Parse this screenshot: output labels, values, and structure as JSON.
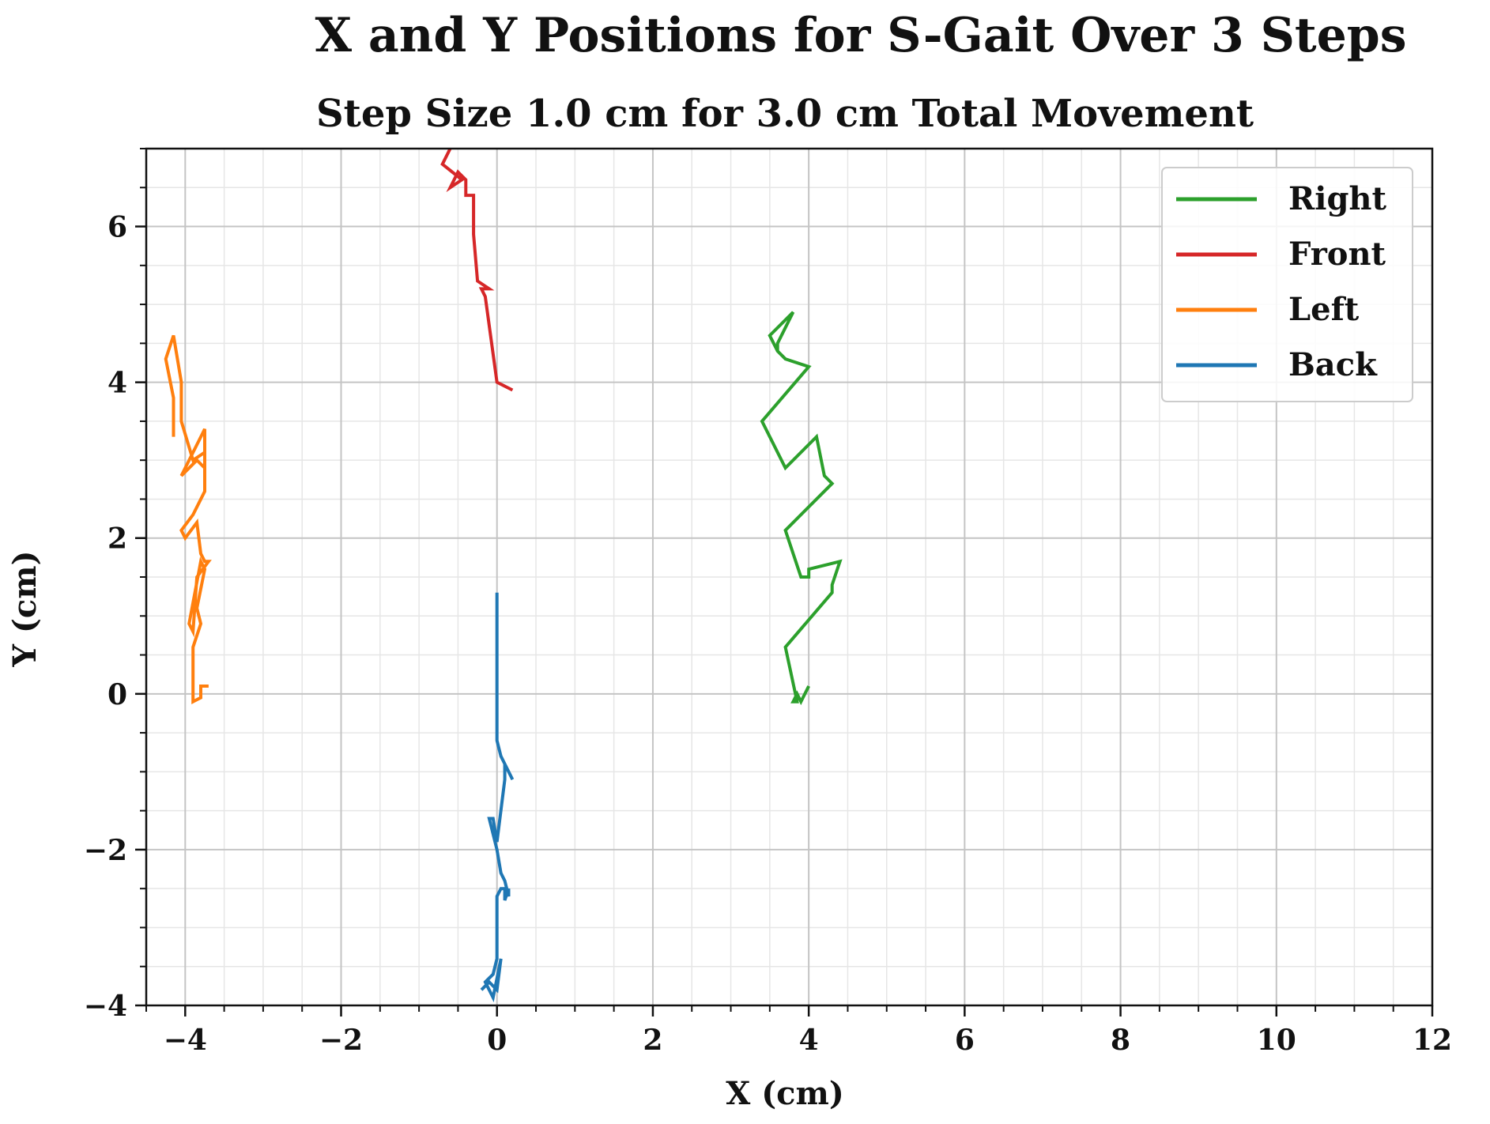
{
  "chart_data": {
    "type": "line",
    "title": "X and Y Positions for S-Gait Over 3 Steps",
    "subtitle": "Step Size 1.0 cm for 3.0 cm Total Movement",
    "xlabel": "X (cm)",
    "ylabel": "Y (cm)",
    "xlim": [
      -4.5,
      12
    ],
    "ylim": [
      -4,
      7
    ],
    "xticks": [
      -4,
      -2,
      0,
      2,
      4,
      6,
      8,
      10,
      12
    ],
    "yticks": [
      -4,
      -2,
      0,
      2,
      4,
      6
    ],
    "xtick_labels": [
      "−4",
      "−2",
      "0",
      "2",
      "4",
      "6",
      "8",
      "10",
      "12"
    ],
    "ytick_labels": [
      "−4",
      "−2",
      "0",
      "2",
      "4",
      "6"
    ],
    "grid": true,
    "minor_grid": true,
    "legend_position": "top-right",
    "series": [
      {
        "name": "Right",
        "color": "#2ca02c",
        "x": [
          4.0,
          3.9,
          3.85,
          3.8,
          3.85,
          3.7,
          4.3,
          4.3,
          4.4,
          4.0,
          4.0,
          3.9,
          3.7,
          4.3,
          4.2,
          4.1,
          3.7,
          3.4,
          4.0,
          3.7,
          3.6,
          3.5,
          3.8,
          3.6,
          3.6
        ],
        "y": [
          0.1,
          -0.1,
          0.0,
          -0.1,
          -0.1,
          0.6,
          1.3,
          1.4,
          1.7,
          1.6,
          1.5,
          1.5,
          2.1,
          2.7,
          2.8,
          3.3,
          2.9,
          3.5,
          4.2,
          4.3,
          4.4,
          4.6,
          4.9,
          4.5,
          4.4
        ]
      },
      {
        "name": "Front",
        "color": "#d62728",
        "x": [
          0.2,
          0.0,
          -0.15,
          -0.2,
          -0.1,
          -0.25,
          -0.3,
          -0.3,
          -0.4,
          -0.4,
          -0.5,
          -0.6,
          -0.45,
          -0.7,
          -0.55
        ],
        "y": [
          3.9,
          4.0,
          5.1,
          5.2,
          5.2,
          5.3,
          5.9,
          6.4,
          6.4,
          6.6,
          6.7,
          6.5,
          6.6,
          6.8,
          7.1
        ]
      },
      {
        "name": "Left",
        "color": "#ff7f0e",
        "x": [
          -3.7,
          -3.8,
          -3.8,
          -3.9,
          -3.9,
          -3.8,
          -3.85,
          -3.75,
          -3.8,
          -3.95,
          -3.9,
          -3.85,
          -3.7,
          -3.75,
          -3.8,
          -3.85,
          -4.0,
          -4.05,
          -3.9,
          -3.75,
          -3.75,
          -4.05,
          -3.85,
          -3.75,
          -3.75,
          -3.9,
          -4.05,
          -4.05,
          -4.15,
          -4.25,
          -4.15,
          -4.15
        ],
        "y": [
          0.1,
          0.1,
          -0.05,
          -0.1,
          0.6,
          0.9,
          1.1,
          1.6,
          1.7,
          0.9,
          0.8,
          1.5,
          1.7,
          1.7,
          1.8,
          2.2,
          2.0,
          2.1,
          2.3,
          2.6,
          3.4,
          2.8,
          3.0,
          2.9,
          3.1,
          3.0,
          3.5,
          4.0,
          4.6,
          4.3,
          3.8,
          3.3
        ]
      },
      {
        "name": "Back",
        "color": "#1f77b4",
        "x": [
          -0.2,
          -0.1,
          0.0,
          0.05,
          -0.05,
          -0.15,
          -0.05,
          0.0,
          0.0,
          0.05,
          0.1,
          0.1,
          0.15,
          0.15,
          0.1,
          0.05,
          0.0,
          -0.05,
          -0.1,
          -0.05,
          0.0,
          0.1,
          0.1,
          0.2,
          0.1,
          0.05,
          0.0,
          0.0,
          0.0
        ],
        "y": [
          -3.8,
          -3.7,
          -3.8,
          -3.4,
          -3.9,
          -3.7,
          -3.6,
          -3.4,
          -2.6,
          -2.5,
          -2.5,
          -2.65,
          -2.5,
          -2.6,
          -2.4,
          -2.3,
          -2.0,
          -1.8,
          -1.6,
          -1.6,
          -1.9,
          -1.1,
          -0.9,
          -1.1,
          -0.9,
          -0.8,
          -0.6,
          0.1,
          1.3
        ]
      }
    ]
  }
}
